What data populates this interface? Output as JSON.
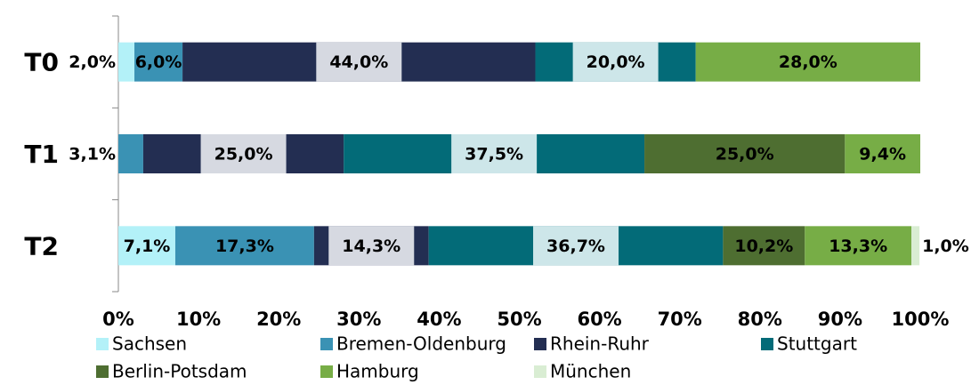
{
  "chart_data": {
    "type": "stacked_bar_horizontal",
    "categories": [
      "T0",
      "T1",
      "T2"
    ],
    "series": [
      {
        "name": "Sachsen",
        "color": "#b3f1f8",
        "values": [
          2.0,
          0,
          7.1
        ],
        "value_labels": [
          "2,0%",
          null,
          "7,1%"
        ]
      },
      {
        "name": "Bremen-Oldenburg",
        "color": "#3a92b4",
        "values": [
          6.0,
          3.1,
          17.3
        ],
        "value_labels": [
          "6,0%",
          "3,1%",
          "17,3%"
        ]
      },
      {
        "name": "Rhein-Ruhr",
        "color": "#232e52",
        "values": [
          44.0,
          25.0,
          14.3
        ],
        "value_labels": [
          "44,0%",
          "25,0%",
          "14,3%"
        ]
      },
      {
        "name": "Stuttgart",
        "color": "#036b78",
        "values": [
          20.0,
          37.5,
          36.7
        ],
        "value_labels": [
          "20,0%",
          "37,5%",
          "36,7%"
        ]
      },
      {
        "name": "Berlin-Potsdam",
        "color": "#4e6e31",
        "values": [
          0,
          25.0,
          10.2
        ],
        "value_labels": [
          null,
          "25,0%",
          "10,2%"
        ]
      },
      {
        "name": "Hamburg",
        "color": "#77ad46",
        "values": [
          28.0,
          9.4,
          13.3
        ],
        "value_labels": [
          "28,0%",
          "9,4%",
          "13,3%"
        ]
      },
      {
        "name": "München",
        "color": "#d9edd3",
        "values": [
          0,
          0,
          1.0
        ],
        "value_labels": [
          null,
          null,
          "1,0%"
        ]
      }
    ],
    "xlim": [
      0,
      100
    ],
    "xticks": [
      {
        "value": 0,
        "label": "0%"
      },
      {
        "value": 10,
        "label": "10%"
      },
      {
        "value": 20,
        "label": "20%"
      },
      {
        "value": 30,
        "label": "30%"
      },
      {
        "value": 40,
        "label": "40%"
      },
      {
        "value": 50,
        "label": "50%"
      },
      {
        "value": 60,
        "label": "60%"
      },
      {
        "value": 70,
        "label": "70%"
      },
      {
        "value": 80,
        "label": "80%"
      },
      {
        "value": 90,
        "label": "90%"
      },
      {
        "value": 100,
        "label": "100%"
      }
    ],
    "legend": "bottom"
  }
}
